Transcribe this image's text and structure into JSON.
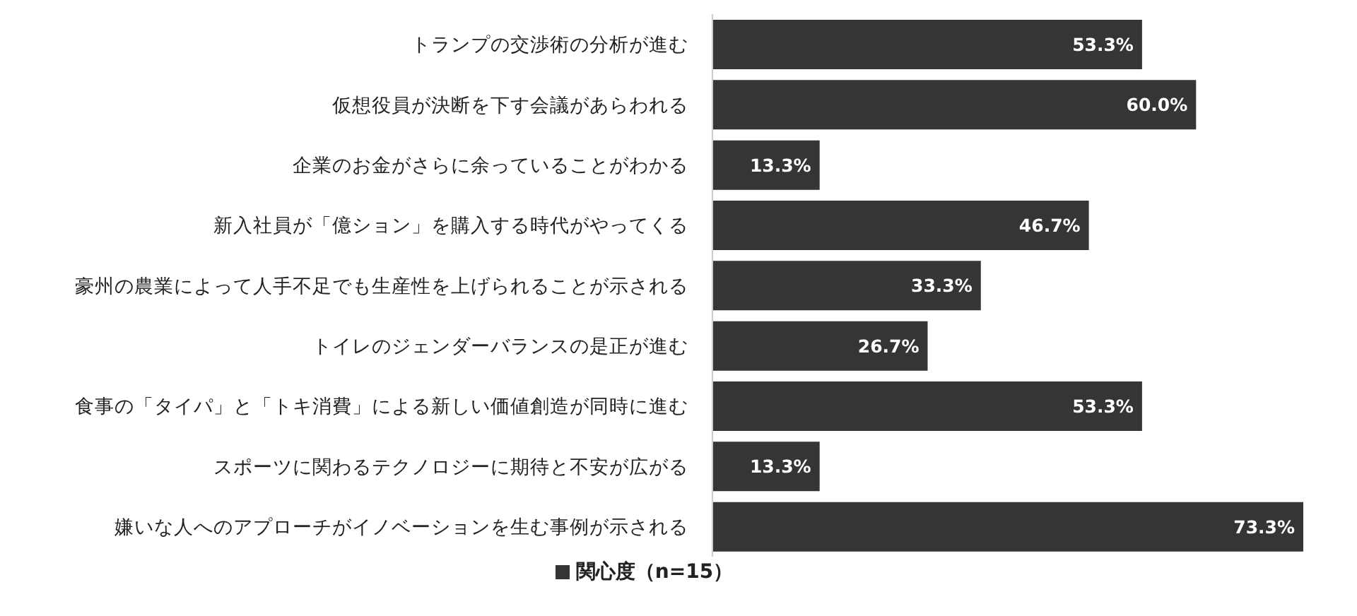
{
  "chart_data": {
    "type": "bar",
    "orientation": "horizontal",
    "tick_labels": "y",
    "legend": "bottom",
    "categories": [
      "トランプの交渉術の分析が進む",
      "仮想役員が決断を下す会議があらわれる",
      "企業のお金がさらに余っていることがわかる",
      "新入社員が「億ション」を購入する時代がやってくる",
      "豪州の農業によって人手不足でも生産性を上げられることが示される",
      "トイレのジェンダーバランスの是正が進む",
      "食事の「タイパ」と「トキ消費」による新しい価値創造が同時に進む",
      "スポーツに関わるテクノロジーに期待と不安が広がる",
      "嫌いな人へのアプローチがイノベーションを生む事例が示される"
    ],
    "series": [
      {
        "name": "関心度（n=15）",
        "color": "#353535",
        "values": [
          53.3,
          60.0,
          13.3,
          46.7,
          33.3,
          26.7,
          53.3,
          13.3,
          73.3
        ],
        "value_labels": [
          "53.3%",
          "60.0%",
          "13.3%",
          "46.7%",
          "33.3%",
          "26.7%",
          "53.3%",
          "13.3%",
          "73.3%"
        ]
      }
    ]
  }
}
